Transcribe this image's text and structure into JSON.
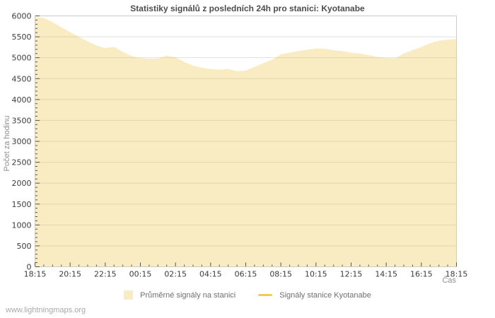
{
  "header": {
    "title": "Statistiky signálů z posledních 24h pro stanici: Kyotanabe"
  },
  "footer": {
    "watermark": "www.lightningmaps.org"
  },
  "legend": {
    "items": [
      {
        "label": "Průměrné signály na stanici",
        "swatch": "area-swatch"
      },
      {
        "label": "Signály stanice Kyotanabe",
        "swatch": "line-swatch"
      }
    ]
  },
  "chart_data": {
    "type": "area",
    "title": "Statistiky signálů z posledních 24h pro stanici: Kyotanabe",
    "xlabel": "Čas",
    "ylabel": "Počet za hodinu",
    "ylim": [
      0,
      6000
    ],
    "y_tick_step": 500,
    "y_minor_step": 100,
    "x_range_hours": 24,
    "x_step_hours": 0.5,
    "x_major_every_hours": 2,
    "x_minor_every_hours": 0.5,
    "x_tick_labels": [
      "18:15",
      "20:15",
      "22:15",
      "00:15",
      "02:15",
      "04:15",
      "06:15",
      "08:15",
      "10:15",
      "12:15",
      "14:15",
      "16:15",
      "18:15"
    ],
    "grid": true,
    "legend_position": "bottom-center",
    "colors": {
      "series_line": "#edc240",
      "series_fill": "rgba(237,194,64,0.32)",
      "grid_line": "#e0e0e0",
      "plot_border": "#cccccc",
      "tick": "#545454"
    },
    "series": [
      {
        "name": "Průměrné signály na stanici",
        "type": "area",
        "values": [
          5970,
          5950,
          5850,
          5730,
          5610,
          5500,
          5390,
          5290,
          5230,
          5260,
          5140,
          5040,
          4990,
          4975,
          4980,
          5050,
          5010,
          4900,
          4810,
          4760,
          4730,
          4715,
          4730,
          4680,
          4690,
          4780,
          4870,
          4950,
          5080,
          5120,
          5160,
          5190,
          5220,
          5215,
          5180,
          5160,
          5120,
          5100,
          5060,
          5020,
          4990,
          4985,
          5100,
          5180,
          5260,
          5345,
          5410,
          5430,
          5445
        ]
      },
      {
        "name": "Signály stanice Kyotanabe",
        "type": "line",
        "values": []
      }
    ]
  }
}
